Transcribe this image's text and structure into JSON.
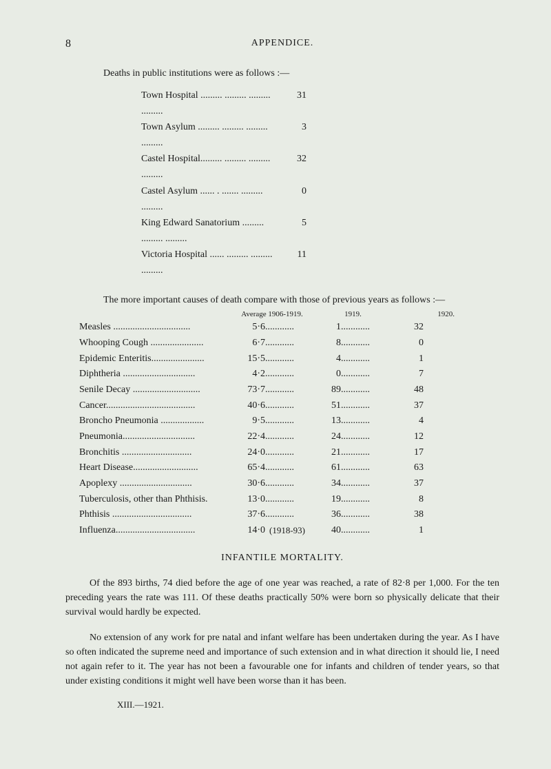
{
  "page_number": "8",
  "header_title": "APPENDICE.",
  "intro": "Deaths in public institutions were as follows :—",
  "institutions": [
    {
      "label": "Town Hospital .........   .........   .........   .........",
      "value": "31"
    },
    {
      "label": "Town Asylum  .........   .........   .........   .........",
      "value": "3"
    },
    {
      "label": "Castel Hospital.........   .........   .........   .........",
      "value": "32"
    },
    {
      "label": "Castel Asylum ...... .    .......    .........   .........",
      "value": "0"
    },
    {
      "label": "King Edward Sanatorium  .........   .........   .........",
      "value": "5"
    },
    {
      "label": "Victoria Hospital ......   .........   .........   .........",
      "value": "11"
    }
  ],
  "compare_text": "The more important causes of death compare with those of previous years as follows :—",
  "table_headers": {
    "avg": "Average 1906-1919.",
    "y1919": "1919.",
    "y1920": "1920."
  },
  "causes": [
    {
      "label": "Measles  ................................",
      "avg": "5·6",
      "v1919": "1",
      "v1920": "32"
    },
    {
      "label": "Whooping Cough  ......................",
      "avg": "6·7",
      "v1919": "8",
      "v1920": "0"
    },
    {
      "label": "Epidemic Enteritis......................",
      "avg": "15·5",
      "v1919": "4",
      "v1920": "1"
    },
    {
      "label": "Diphtheria ..............................",
      "avg": "4·2",
      "v1919": "0",
      "v1920": "7"
    },
    {
      "label": "Senile Decay ............................",
      "avg": "73·7",
      "v1919": "89",
      "v1920": "48"
    },
    {
      "label": "Cancer.....................................",
      "avg": "40·6",
      "v1919": "51",
      "v1920": "37"
    },
    {
      "label": "Broncho Pneumonia ..................",
      "avg": "9·5",
      "v1919": "13",
      "v1920": "4"
    },
    {
      "label": "Pneumonia..............................",
      "avg": "22·4",
      "v1919": "24",
      "v1920": "12"
    },
    {
      "label": "Bronchitis  .............................",
      "avg": "24·0",
      "v1919": "21",
      "v1920": "17"
    },
    {
      "label": "Heart Disease...........................",
      "avg": "65·4",
      "v1919": "61",
      "v1920": "63"
    },
    {
      "label": "Apoplexy  ..............................",
      "avg": "30·6",
      "v1919": "34",
      "v1920": "37"
    },
    {
      "label": "Tuberculosis, other than Phthisis.",
      "avg": "13·0",
      "v1919": "19",
      "v1920": "8"
    },
    {
      "label": "Phthisis  .................................",
      "avg": "37·6",
      "v1919": "36",
      "v1920": "38"
    },
    {
      "label": "Influenza.................................",
      "avg": "14·0",
      "special": "(1918-93)",
      "v1919": "40",
      "v1920": "1"
    }
  ],
  "section_title": "INFANTILE MORTALITY.",
  "para1": "Of the 893 births, 74 died before the age of one year was reached, a rate of 82·8 per 1,000. For the ten preceding years the rate was 111. Of these deaths practically 50% were born so physically delicate that their survival would hardly be expected.",
  "para2": "No extension of any work for pre natal and infant welfare has been under­taken during the year. As I have so often indicated the supreme need and importance of such extension and in what direction it should lie, I need not again refer to it. The year has not been a favourable one for infants and children of tender years, so that under existing conditions it might well have been worse than it has been.",
  "xiii": "XIII.—1921."
}
